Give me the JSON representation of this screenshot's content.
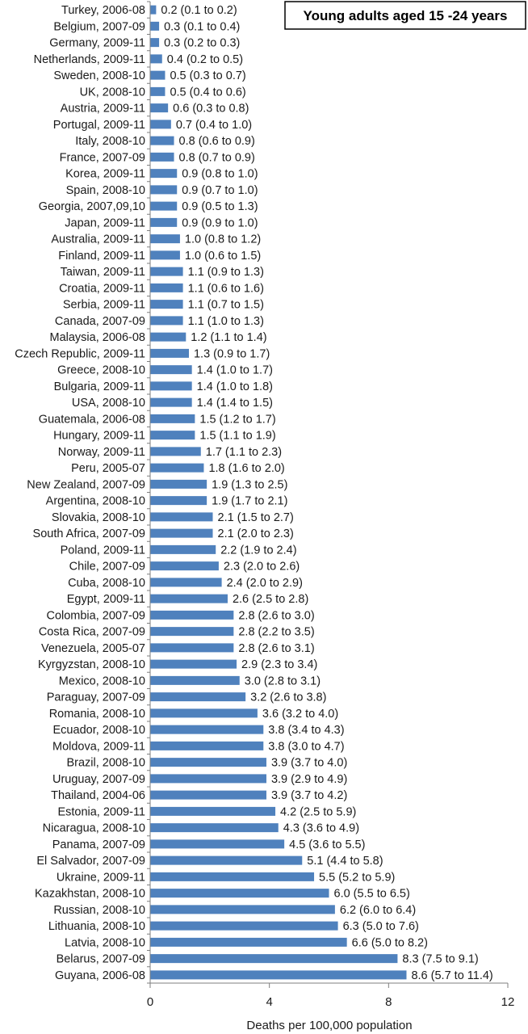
{
  "chart_data": {
    "type": "bar",
    "orientation": "horizontal",
    "title": "Young adults aged 15 -24 years",
    "xlabel": "Deaths per 100,000 population",
    "ylabel": "",
    "xlim": [
      0,
      12
    ],
    "xticks": [
      0,
      4,
      8,
      12
    ],
    "bar_color": "#4f81bd",
    "grid": false,
    "title_position": "top-right",
    "categories": [
      "Turkey, 2006-08",
      "Belgium, 2007-09",
      "Germany, 2009-11",
      "Netherlands, 2009-11",
      "Sweden, 2008-10",
      "UK, 2008-10",
      "Austria, 2009-11",
      "Portugal, 2009-11",
      "Italy, 2008-10",
      "France, 2007-09",
      "Korea, 2009-11",
      "Spain, 2008-10",
      "Georgia, 2007,09,10",
      "Japan, 2009-11",
      "Australia, 2009-11",
      "Finland, 2009-11",
      "Taiwan, 2009-11",
      "Croatia, 2009-11",
      "Serbia, 2009-11",
      "Canada, 2007-09",
      "Malaysia, 2006-08",
      "Czech Republic, 2009-11",
      "Greece, 2008-10",
      "Bulgaria, 2009-11",
      "USA, 2008-10",
      "Guatemala, 2006-08",
      "Hungary, 2009-11",
      "Norway, 2009-11",
      "Peru, 2005-07",
      "New Zealand, 2007-09",
      "Argentina, 2008-10",
      "Slovakia, 2008-10",
      "South Africa, 2007-09",
      "Poland, 2009-11",
      "Chile, 2007-09",
      "Cuba, 2008-10",
      "Egypt, 2009-11",
      "Colombia, 2007-09",
      "Costa Rica, 2007-09",
      "Venezuela, 2005-07",
      "Kyrgyzstan, 2008-10",
      "Mexico, 2008-10",
      "Paraguay, 2007-09",
      "Romania, 2008-10",
      "Ecuador, 2008-10",
      "Moldova, 2009-11",
      "Brazil, 2008-10",
      "Uruguay, 2007-09",
      "Thailand, 2004-06",
      "Estonia, 2009-11",
      "Nicaragua, 2008-10",
      "Panama, 2007-09",
      "El Salvador, 2007-09",
      "Ukraine, 2009-11",
      "Kazakhstan, 2008-10",
      "Russian, 2008-10",
      "Lithuania, 2008-10",
      "Latvia, 2008-10",
      "Belarus, 2007-09",
      "Guyana, 2006-08"
    ],
    "values": [
      0.2,
      0.3,
      0.3,
      0.4,
      0.5,
      0.5,
      0.6,
      0.7,
      0.8,
      0.8,
      0.9,
      0.9,
      0.9,
      0.9,
      1.0,
      1.0,
      1.1,
      1.1,
      1.1,
      1.1,
      1.2,
      1.3,
      1.4,
      1.4,
      1.4,
      1.5,
      1.5,
      1.7,
      1.8,
      1.9,
      1.9,
      2.1,
      2.1,
      2.2,
      2.3,
      2.4,
      2.6,
      2.8,
      2.8,
      2.8,
      2.9,
      3.0,
      3.2,
      3.6,
      3.8,
      3.8,
      3.9,
      3.9,
      3.9,
      4.2,
      4.3,
      4.5,
      5.1,
      5.5,
      6.0,
      6.2,
      6.3,
      6.6,
      8.3,
      8.6
    ],
    "data_labels": [
      "0.2 (0.1 to 0.2)",
      "0.3 (0.1 to 0.4)",
      "0.3 (0.2 to 0.3)",
      "0.4 (0.2 to 0.5)",
      "0.5 (0.3 to 0.7)",
      "0.5 (0.4 to 0.6)",
      "0.6 (0.3 to 0.8)",
      "0.7 (0.4 to 1.0)",
      "0.8 (0.6 to 0.9)",
      "0.8 (0.7 to 0.9)",
      "0.9 (0.8 to 1.0)",
      "0.9 (0.7 to 1.0)",
      "0.9 (0.5 to 1.3)",
      "0.9 (0.9 to 1.0)",
      "1.0 (0.8 to 1.2)",
      "1.0 (0.6 to 1.5)",
      "1.1 (0.9 to 1.3)",
      "1.1 (0.6 to 1.6)",
      "1.1 (0.7 to 1.5)",
      "1.1 (1.0 to 1.3)",
      "1.2 (1.1 to 1.4)",
      "1.3 (0.9 to 1.7)",
      "1.4 (1.0 to 1.7)",
      "1.4 (1.0 to 1.8)",
      "1.4 (1.4 to 1.5)",
      "1.5 (1.2 to 1.7)",
      "1.5 (1.1 to 1.9)",
      "1.7 (1.1 to 2.3)",
      "1.8 (1.6 to 2.0)",
      "1.9 (1.3 to 2.5)",
      "1.9 (1.7 to 2.1)",
      "2.1 (1.5 to 2.7)",
      "2.1 (2.0 to 2.3)",
      "2.2 (1.9 to 2.4)",
      "2.3 (2.0 to 2.6)",
      "2.4 (2.0 to 2.9)",
      "2.6 (2.5 to 2.8)",
      "2.8 (2.6 to 3.0)",
      "2.8 (2.2 to 3.5)",
      "2.8 (2.6 to 3.1)",
      "2.9 (2.3 to 3.4)",
      "3.0 (2.8 to 3.1)",
      "3.2 (2.6 to 3.8)",
      "3.6 (3.2 to 4.0)",
      "3.8 (3.4 to 4.3)",
      "3.8 (3.0 to 4.7)",
      "3.9 (3.7 to 4.0)",
      "3.9 (2.9 to 4.9)",
      "3.9 (3.7 to 4.2)",
      "4.2 (2.5 to 5.9)",
      "4.3 (3.6 to 4.9)",
      "4.5 (3.6 to 5.5)",
      "5.1 (4.4 to 5.8)",
      "5.5 (5.2 to 5.9)",
      "6.0 (5.5 to 6.5)",
      "6.2 (6.0 to 6.4)",
      "6.3 (5.0 to 7.6)",
      "6.6 (5.0 to 8.2)",
      "8.3 (7.5 to 9.1)",
      "8.6 (5.7 to 11.4)"
    ]
  }
}
